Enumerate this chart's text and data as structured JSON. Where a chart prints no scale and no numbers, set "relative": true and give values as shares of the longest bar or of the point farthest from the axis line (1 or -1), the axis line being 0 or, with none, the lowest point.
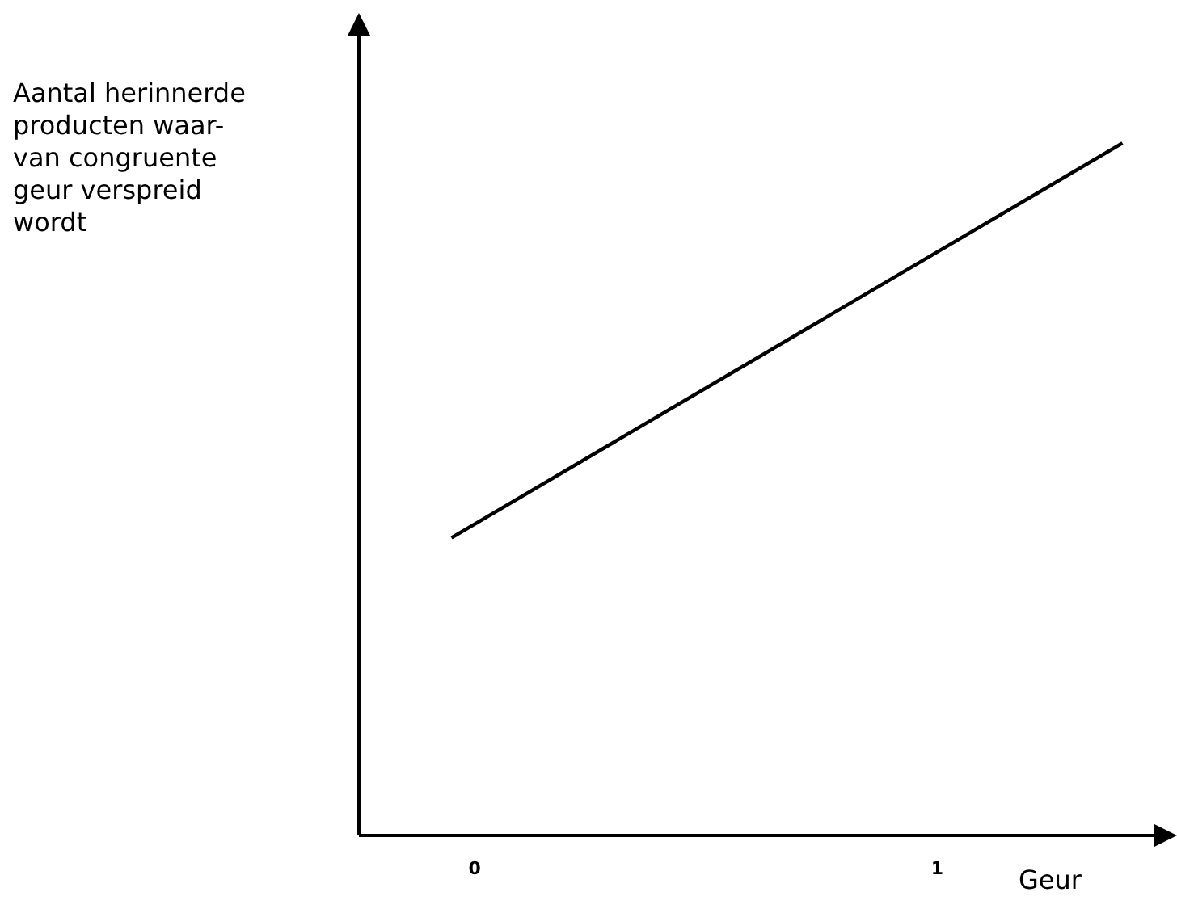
{
  "chart_data": {
    "type": "line",
    "relative": true,
    "ylabel": "Aantal herinnerde\nproducten waar-\nvan congruente\ngeur verspreid\nwordt",
    "xlabel": "Geur",
    "x": [
      -0.05,
      1.4
    ],
    "series": [
      {
        "color": "#000000",
        "values": [
          0.43,
          1
        ]
      }
    ],
    "xlim": [
      -0.25,
      1.49
    ],
    "xticks": [
      0,
      1
    ],
    "grid": false,
    "legend": false,
    "marker": "none",
    "line_style": "solid"
  }
}
